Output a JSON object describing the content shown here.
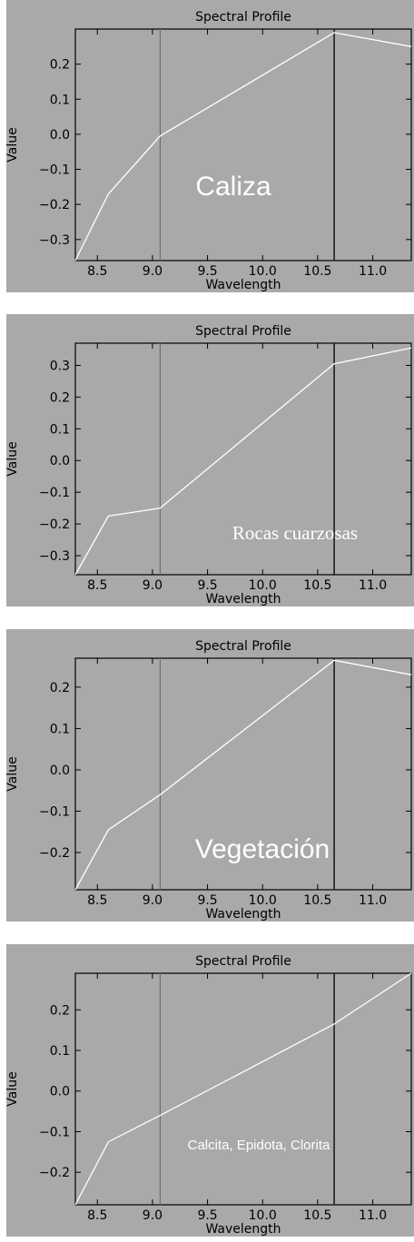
{
  "colors": {
    "background": "#a9a9a9",
    "plot_line": "#ffffff",
    "frame": "#000000",
    "band_left": "#6e6e6e",
    "band_right": "#1e1e1e"
  },
  "chart_data": [
    {
      "type": "line",
      "title": "Spectral Profile",
      "xlabel": "Wavelength",
      "ylabel": "Value",
      "annotation": "Caliza",
      "xlim": [
        8.3,
        11.35
      ],
      "ylim": [
        -0.36,
        0.3
      ],
      "x_ticks": [
        8.5,
        9.0,
        9.5,
        10.0,
        10.5,
        11.0
      ],
      "x_tick_labels": [
        "8.5",
        "9.0",
        "9.5",
        "10.0",
        "10.5",
        "11.0"
      ],
      "y_ticks": [
        -0.3,
        -0.2,
        -0.1,
        0.0,
        0.1,
        0.2
      ],
      "y_tick_labels": [
        "−0.3",
        "−0.2",
        "−0.1",
        "0.0",
        "0.1",
        "0.2"
      ],
      "vertical_lines": [
        9.07,
        10.65
      ],
      "series": [
        {
          "x": [
            8.3,
            8.6,
            9.07,
            10.65,
            11.35
          ],
          "y": [
            -0.36,
            -0.17,
            -0.005,
            0.29,
            0.25
          ]
        }
      ]
    },
    {
      "type": "line",
      "title": "Spectral Profile",
      "xlabel": "Wavelength",
      "ylabel": "Value",
      "annotation": "Rocas cuarzosas",
      "xlim": [
        8.3,
        11.35
      ],
      "ylim": [
        -0.36,
        0.37
      ],
      "x_ticks": [
        8.5,
        9.0,
        9.5,
        10.0,
        10.5,
        11.0
      ],
      "x_tick_labels": [
        "8.5",
        "9.0",
        "9.5",
        "10.0",
        "10.5",
        "11.0"
      ],
      "y_ticks": [
        -0.3,
        -0.2,
        -0.1,
        0.0,
        0.1,
        0.2,
        0.3
      ],
      "y_tick_labels": [
        "−0.3",
        "−0.2",
        "−0.1",
        "0.0",
        "0.1",
        "0.2",
        "0.3"
      ],
      "vertical_lines": [
        9.07,
        10.65
      ],
      "series": [
        {
          "x": [
            8.3,
            8.6,
            9.07,
            10.65,
            11.35
          ],
          "y": [
            -0.36,
            -0.175,
            -0.15,
            0.305,
            0.355
          ]
        }
      ]
    },
    {
      "type": "line",
      "title": "Spectral Profile",
      "xlabel": "Wavelength",
      "ylabel": "Value",
      "annotation": "Vegetación",
      "xlim": [
        8.3,
        11.35
      ],
      "ylim": [
        -0.29,
        0.27
      ],
      "x_ticks": [
        8.5,
        9.0,
        9.5,
        10.0,
        10.5,
        11.0
      ],
      "x_tick_labels": [
        "8.5",
        "9.0",
        "9.5",
        "10.0",
        "10.5",
        "11.0"
      ],
      "y_ticks": [
        -0.2,
        -0.1,
        0.0,
        0.1,
        0.2
      ],
      "y_tick_labels": [
        "−0.2",
        "−0.1",
        "0.0",
        "0.1",
        "0.2"
      ],
      "vertical_lines": [
        9.07,
        10.65
      ],
      "series": [
        {
          "x": [
            8.3,
            8.6,
            9.07,
            10.65,
            11.35
          ],
          "y": [
            -0.29,
            -0.145,
            -0.06,
            0.265,
            0.23
          ]
        }
      ]
    },
    {
      "type": "line",
      "title": "Spectral Profile",
      "xlabel": "Wavelength",
      "ylabel": "Value",
      "annotation": "Calcita, Epidota, Clorita",
      "xlim": [
        8.3,
        11.35
      ],
      "ylim": [
        -0.28,
        0.29
      ],
      "x_ticks": [
        8.5,
        9.0,
        9.5,
        10.0,
        10.5,
        11.0
      ],
      "x_tick_labels": [
        "8.5",
        "9.0",
        "9.5",
        "10.0",
        "10.5",
        "11.0"
      ],
      "y_ticks": [
        -0.2,
        -0.1,
        0.0,
        0.1,
        0.2
      ],
      "y_tick_labels": [
        "−0.2",
        "−0.1",
        "0.0",
        "0.1",
        "0.2"
      ],
      "vertical_lines": [
        9.07,
        10.65
      ],
      "series": [
        {
          "x": [
            8.3,
            8.6,
            9.07,
            10.65,
            11.35
          ],
          "y": [
            -0.28,
            -0.125,
            -0.06,
            0.165,
            0.29
          ]
        }
      ]
    }
  ]
}
